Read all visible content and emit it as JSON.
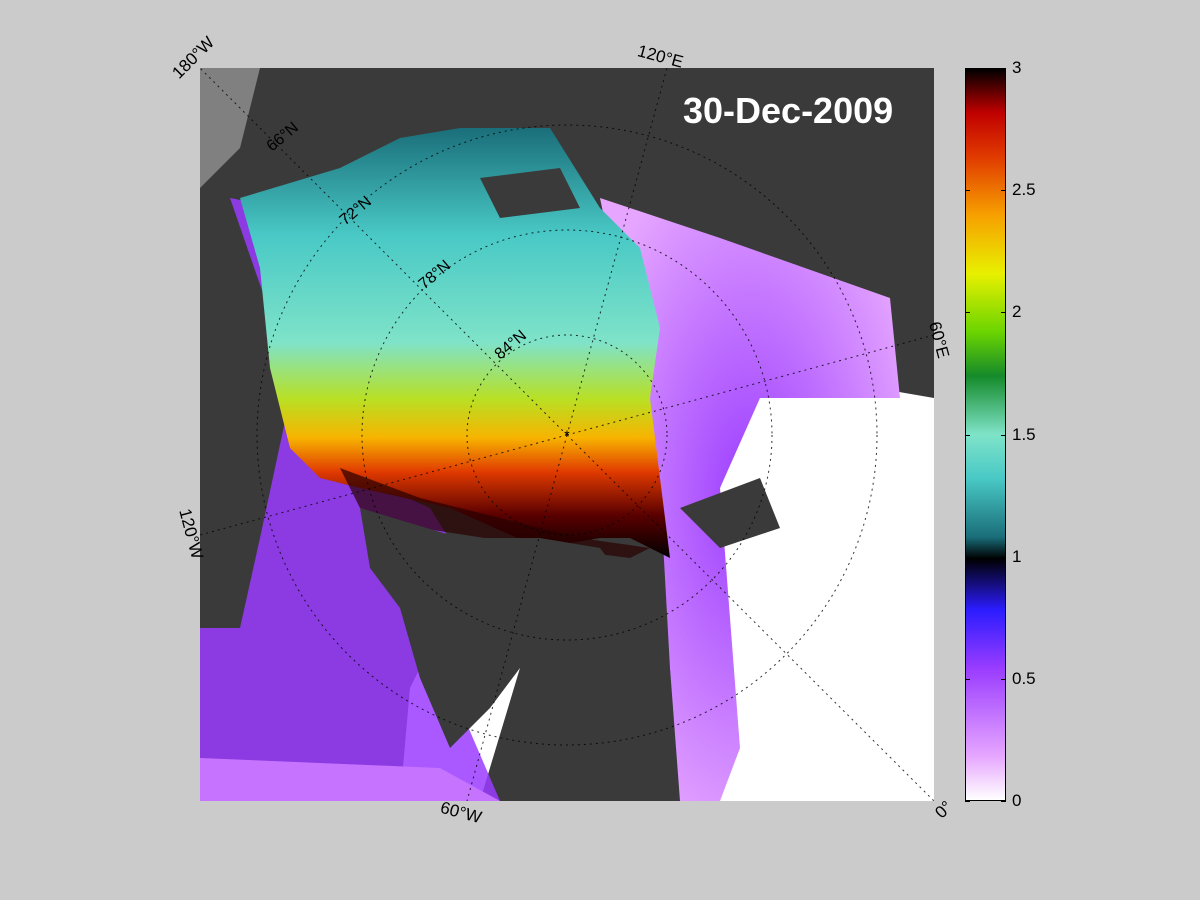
{
  "map": {
    "date": "30-Dec-2009",
    "colormap_name": "sea-ice-thickness",
    "colorbar_min": 0,
    "colorbar_max": 3,
    "colorbar_ticks": [
      "0",
      "0.5",
      "1",
      "1.5",
      "2",
      "2.5",
      "3"
    ],
    "longitude_labels": {
      "top_left": "180°W",
      "top": "120°E",
      "right": "60°E",
      "bottom_right": "0°",
      "bottom": "60°W",
      "left": "120°W"
    },
    "latitude_labels": [
      "66°N",
      "72°N",
      "78°N",
      "84°N"
    ],
    "colors": {
      "land": "#3a3a3a",
      "background": "#cbcbcb",
      "open_water": "#ffffff",
      "thick_ice": "#000000"
    }
  }
}
